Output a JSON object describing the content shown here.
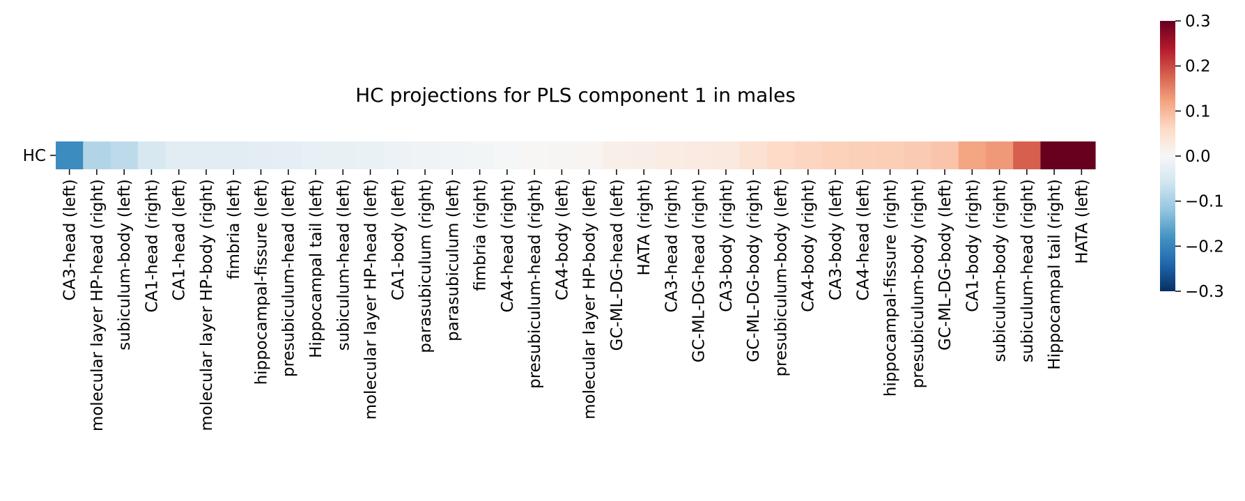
{
  "chart_data": {
    "type": "heatmap",
    "title": "HC projections for PLS component 1 in males",
    "xlabel": "",
    "ylabel": "",
    "rows": [
      "HC"
    ],
    "categories": [
      "CA3-head (left)",
      "molecular layer HP-head (right)",
      "subiculum-body (left)",
      "CA1-head (right)",
      "CA1-head (left)",
      "molecular layer HP-body (right)",
      "fimbria (left)",
      "hippocampal-fissure (left)",
      "presubiculum-head (left)",
      "Hippocampal tail (left)",
      "subiculum-head (left)",
      "molecular layer HP-head (left)",
      "CA1-body (left)",
      "parasubiculum (right)",
      "parasubiculum (left)",
      "fimbria (right)",
      "CA4-head (right)",
      "presubiculum-head (right)",
      "CA4-body (left)",
      "molecular layer HP-body (left)",
      "GC-ML-DG-head (left)",
      "HATA (right)",
      "CA3-head (right)",
      "GC-ML-DG-head (right)",
      "CA3-body (right)",
      "GC-ML-DG-body (right)",
      "presubiculum-body (left)",
      "CA4-body (right)",
      "CA3-body (left)",
      "CA4-head (left)",
      "hippocampal-fissure (right)",
      "presubiculum-body (right)",
      "GC-ML-DG-body (left)",
      "CA1-body (right)",
      "subiculum-body (right)",
      "subiculum-head (right)",
      "Hippocampal tail (right)",
      "HATA (left)"
    ],
    "values": [
      [
        -0.19,
        -0.09,
        -0.08,
        -0.05,
        -0.035,
        -0.035,
        -0.035,
        -0.032,
        -0.03,
        -0.025,
        -0.022,
        -0.02,
        -0.018,
        -0.012,
        -0.01,
        -0.008,
        -0.004,
        0.002,
        0.004,
        0.006,
        0.018,
        0.02,
        0.025,
        0.028,
        0.03,
        0.045,
        0.06,
        0.065,
        0.07,
        0.072,
        0.075,
        0.078,
        0.085,
        0.12,
        0.13,
        0.18,
        0.3,
        0.3
      ]
    ],
    "colorbar": {
      "vmin": -0.3,
      "vmax": 0.3,
      "ticks": [
        "0.3",
        "0.2",
        "0.1",
        "0.0",
        "−0.1",
        "−0.2",
        "−0.3"
      ],
      "tick_values": [
        0.3,
        0.2,
        0.1,
        0.0,
        -0.1,
        -0.2,
        -0.3
      ],
      "colormap": "RdBu_r"
    },
    "grid": false,
    "legend": "colorbar-right"
  }
}
